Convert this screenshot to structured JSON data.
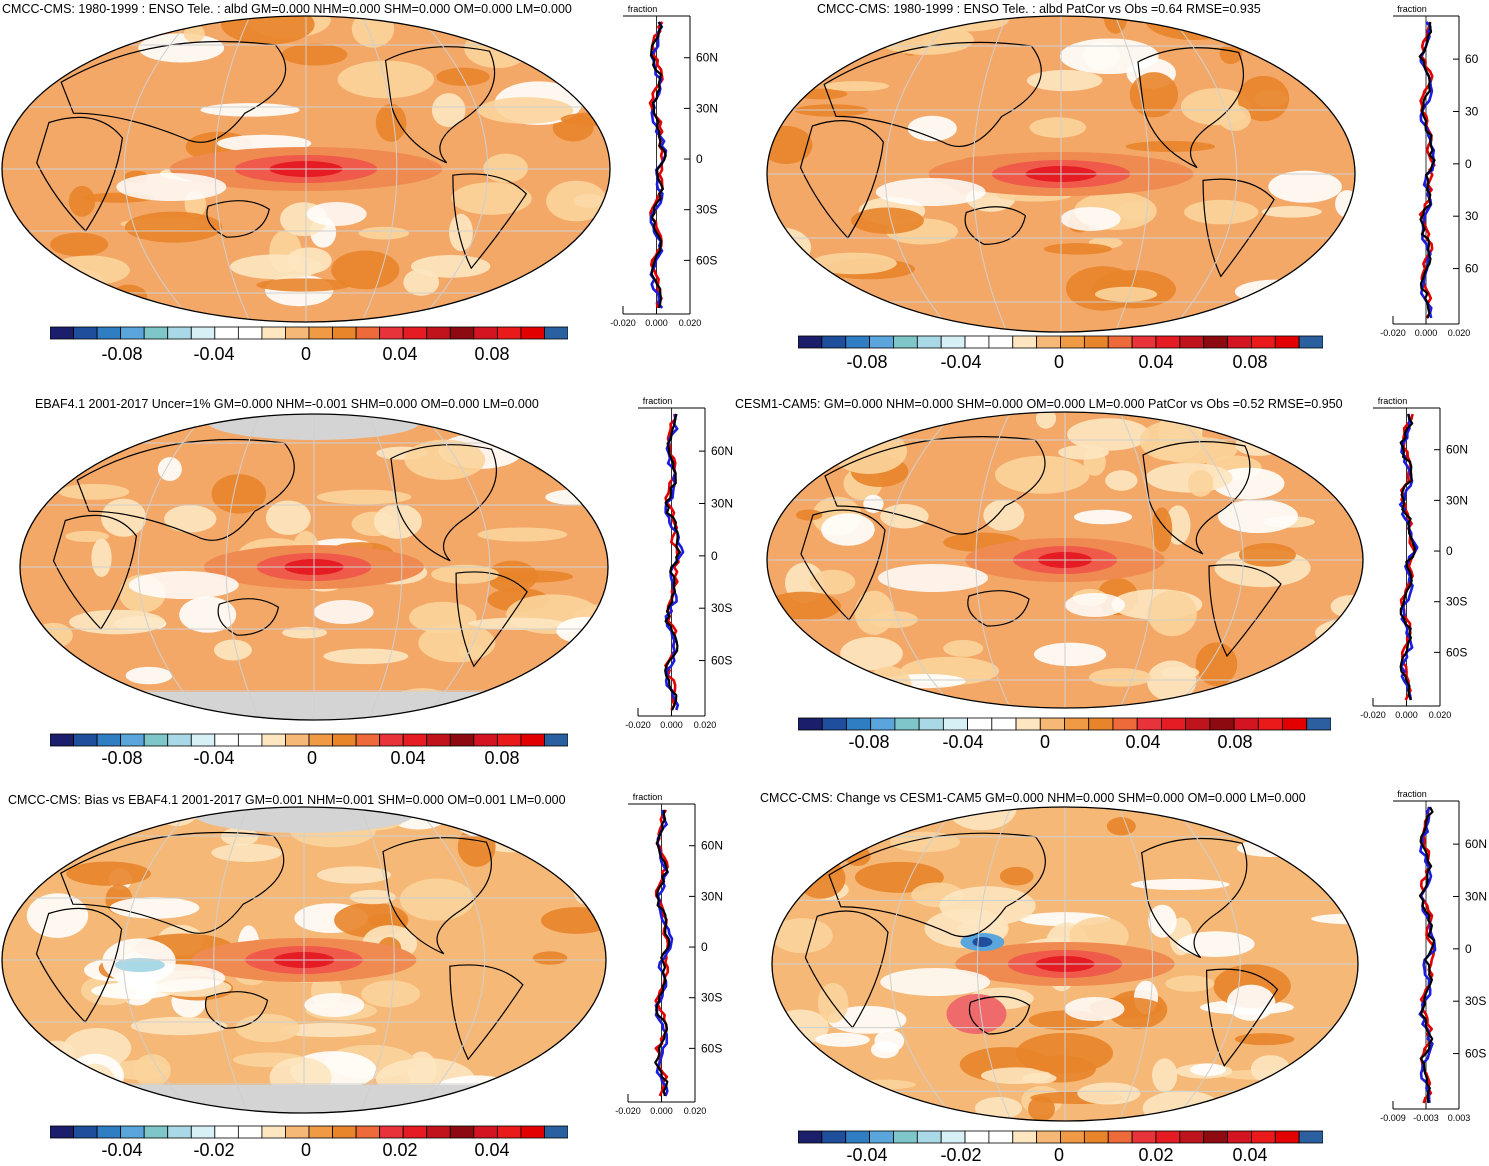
{
  "colorbar_colors": [
    "#1b1f6b",
    "#1f4f9c",
    "#2f7ec4",
    "#5aa6dc",
    "#7fc6c8",
    "#a9d8e6",
    "#d6f0f6",
    "#ffffff",
    "#ffffff",
    "#fde6c0",
    "#f6b876",
    "#f19a45",
    "#e8842a",
    "#ef6a3a",
    "#e8333b",
    "#e51c24",
    "#c0141c",
    "#8c0a10",
    "#d41420",
    "#ea1a1a",
    "#e30000",
    "#2a5fa0"
  ],
  "panels": [
    {
      "title": "CMCC-CMS: 1980-1999 : ENSO Tele. : albd GM=0.000 NHM=0.000 SHM=0.000 OM=0.000 LM=0.000",
      "map_type": "model",
      "hot_strength": 1.0,
      "profile_axis_title": "fraction",
      "profile_x_ticks": [
        "-0.020",
        "0.000",
        "0.020"
      ],
      "profile_y_ticks": [
        "60N",
        "30N",
        "0",
        "30S",
        "60S"
      ],
      "cbar_labels": [
        "-0.08",
        "-0.04",
        "0",
        "0.04",
        "0.08"
      ]
    },
    {
      "title": "CMCC-CMS: 1980-1999 : ENSO Tele. : albd PatCor vs Obs =0.64 RMSE=0.935",
      "map_type": "model",
      "hot_strength": 1.0,
      "profile_axis_title": "fraction",
      "profile_x_ticks": [
        "-0.020",
        "0.000",
        "0.020"
      ],
      "profile_y_ticks": [
        "60",
        "30",
        "0",
        "30",
        "60"
      ],
      "cbar_labels": [
        "-0.08",
        "-0.04",
        "0",
        "0.04",
        "0.08"
      ]
    },
    {
      "title": "EBAF4.1 2001-2017 Uncer=1% GM=0.000 NHM=-0.001 SHM=0.000 OM=0.000 LM=0.000",
      "map_type": "obs",
      "hot_strength": 0.8,
      "profile_axis_title": "fraction",
      "profile_x_ticks": [
        "-0.020",
        "0.000",
        "0.020"
      ],
      "profile_y_ticks": [
        "60N",
        "30N",
        "0",
        "30S",
        "60S"
      ],
      "cbar_labels": [
        "-0.08",
        "-0.04",
        "0",
        "0.04",
        "0.08"
      ]
    },
    {
      "title": "CESM1-CAM5: GM=0.000 NHM=0.000 SHM=0.000 OM=0.000 LM=0.000 PatCor vs Obs =0.52 RMSE=0.950",
      "map_type": "model",
      "hot_strength": 0.7,
      "profile_axis_title": "fraction",
      "profile_x_ticks": [
        "-0.020",
        "0.000",
        "0.020"
      ],
      "profile_y_ticks": [
        "60N",
        "30N",
        "0",
        "30S",
        "60S"
      ],
      "cbar_labels": [
        "-0.08",
        "-0.04",
        "0",
        "0.04",
        "0.08"
      ]
    },
    {
      "title": "CMCC-CMS: Bias vs EBAF4.1 2001-2017 GM=0.001 NHM=0.001 SHM=0.000 OM=0.001 LM=0.000",
      "map_type": "bias",
      "hot_strength": 0.8,
      "profile_axis_title": "fraction",
      "profile_x_ticks": [
        "-0.020",
        "0.000",
        "0.020"
      ],
      "profile_y_ticks": [
        "60N",
        "30N",
        "0",
        "30S",
        "60S"
      ],
      "cbar_labels": [
        "-0.04",
        "-0.02",
        "0",
        "0.02",
        "0.04"
      ]
    },
    {
      "title": "CMCC-CMS: Change vs CESM1-CAM5 GM=0.000 NHM=0.000 SHM=0.000 OM=0.000 LM=0.000",
      "map_type": "change",
      "hot_strength": 0.8,
      "profile_axis_title": "fraction",
      "profile_x_ticks": [
        "-0.009",
        "-0.003",
        "0.003"
      ],
      "profile_y_ticks": [
        "60N",
        "30N",
        "0",
        "30S",
        "60S"
      ],
      "cbar_labels": [
        "-0.04",
        "-0.02",
        "0",
        "0.02",
        "0.04"
      ]
    }
  ]
}
